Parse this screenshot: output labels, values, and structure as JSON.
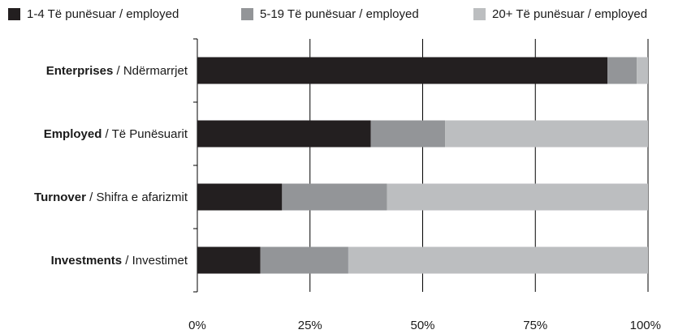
{
  "chart_data": {
    "type": "bar",
    "orientation": "horizontal",
    "stacked": true,
    "normalized_percent": true,
    "categories": [
      {
        "bold": "Enterprises",
        "rest": " / Ndërmarrjet"
      },
      {
        "bold": "Employed",
        "rest": " / Të Punësuarit"
      },
      {
        "bold": "Turnover",
        "rest": " / Shifra e afarizmit"
      },
      {
        "bold": "Investments",
        "rest": " / Investimet"
      }
    ],
    "series": [
      {
        "name": "1-4 Të punësuar / employed",
        "color": "#231f20",
        "values": [
          91,
          38.5,
          18.8,
          14
        ]
      },
      {
        "name": "5-19 Të punësuar / employed",
        "color": "#939598",
        "values": [
          6.5,
          16.5,
          23.3,
          19.5
        ]
      },
      {
        "name": "20+ Të punësuar / employed",
        "color": "#bcbec0",
        "values": [
          2.5,
          45,
          57.9,
          66.5
        ]
      }
    ],
    "xlim": [
      0,
      100
    ],
    "x_ticks": [
      "0%",
      "25%",
      "50%",
      "75%",
      "100%"
    ],
    "grid": "vertical",
    "legend_position": "top"
  }
}
